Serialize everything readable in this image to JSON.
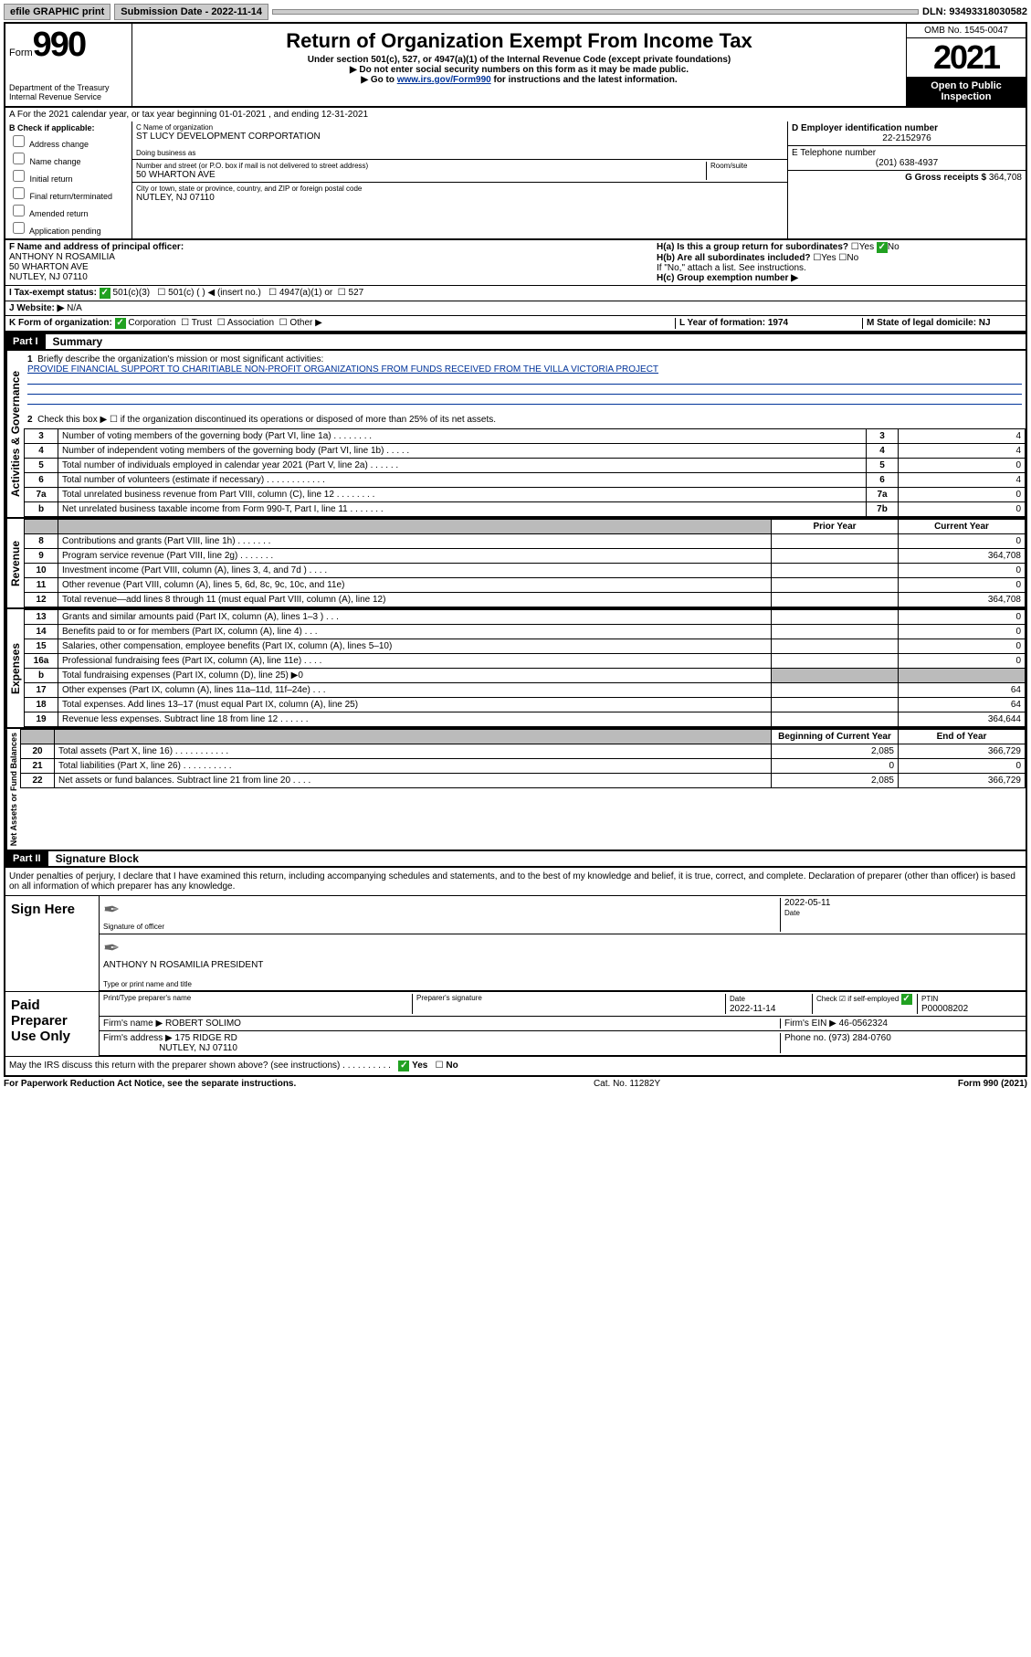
{
  "topbar": {
    "efile": "efile GRAPHIC print",
    "submission_label": "Submission Date - 2022-11-14",
    "dln": "DLN: 93493318030582"
  },
  "header": {
    "form_word": "Form",
    "form_num": "990",
    "dept": "Department of the Treasury\nInternal Revenue Service",
    "title": "Return of Organization Exempt From Income Tax",
    "sub1": "Under section 501(c), 527, or 4947(a)(1) of the Internal Revenue Code (except private foundations)",
    "sub2": "▶ Do not enter social security numbers on this form as it may be made public.",
    "sub3_pre": "▶ Go to ",
    "sub3_link": "www.irs.gov/Form990",
    "sub3_post": " for instructions and the latest information.",
    "omb": "OMB No. 1545-0047",
    "year": "2021",
    "open": "Open to Public Inspection"
  },
  "lineA": "A For the 2021 calendar year, or tax year beginning 01-01-2021   , and ending 12-31-2021",
  "boxB": {
    "title": "B Check if applicable:",
    "opts": [
      "Address change",
      "Name change",
      "Initial return",
      "Final return/terminated",
      "Amended return",
      "Application pending"
    ]
  },
  "boxC": {
    "label_name": "C Name of organization",
    "name": "ST LUCY DEVELOPMENT CORPORTATION",
    "dba_label": "Doing business as",
    "addr_label": "Number and street (or P.O. box if mail is not delivered to street address)",
    "room_label": "Room/suite",
    "addr": "50 WHARTON AVE",
    "city_label": "City or town, state or province, country, and ZIP or foreign postal code",
    "city": "NUTLEY, NJ  07110"
  },
  "boxD": {
    "label": "D Employer identification number",
    "val": "22-2152976"
  },
  "boxE": {
    "label": "E Telephone number",
    "val": "(201) 638-4937"
  },
  "boxG": {
    "label": "G Gross receipts $",
    "val": "364,708"
  },
  "boxF": {
    "label": "F Name and address of principal officer:",
    "name": "ANTHONY N ROSAMILIA",
    "addr1": "50 WHARTON AVE",
    "addr2": "NUTLEY, NJ  07110"
  },
  "boxH": {
    "a": "H(a)  Is this a group return for subordinates?",
    "a_yes": "Yes",
    "a_no": "No",
    "b": "H(b)  Are all subordinates included?",
    "b_yes": "Yes",
    "b_no": "No",
    "b_note": "If \"No,\" attach a list. See instructions.",
    "c": "H(c)  Group exemption number ▶"
  },
  "rowI": {
    "label": "I   Tax-exempt status:",
    "o1": "501(c)(3)",
    "o2": "501(c) (   ) ◀ (insert no.)",
    "o3": "4947(a)(1) or",
    "o4": "527"
  },
  "rowJ": {
    "label": "J   Website: ▶",
    "val": "N/A"
  },
  "rowK": {
    "label": "K Form of organization:",
    "o1": "Corporation",
    "o2": "Trust",
    "o3": "Association",
    "o4": "Other ▶",
    "l": "L Year of formation: 1974",
    "m": "M State of legal domicile: NJ"
  },
  "part1": {
    "hdr": "Part I",
    "title": "Summary",
    "side_gov": "Activities & Governance",
    "side_rev": "Revenue",
    "side_exp": "Expenses",
    "side_net": "Net Assets or Fund Balances",
    "q1": "Briefly describe the organization's mission or most significant activities:",
    "mission": "PROVIDE FINANCIAL SUPPORT TO CHARITIABLE NON-PROFIT ORGANIZATIONS FROM FUNDS RECEIVED FROM THE VILLA VICTORIA PROJECT",
    "q2": "Check this box ▶ ☐  if the organization discontinued its operations or disposed of more than 25% of its net assets.",
    "rows_gov": [
      {
        "n": "3",
        "t": "Number of voting members of the governing body (Part VI, line 1a)  .   .   .   .   .   .   .   .",
        "ln": "3",
        "v": "4"
      },
      {
        "n": "4",
        "t": "Number of independent voting members of the governing body (Part VI, line 1b)  .   .   .   .   .",
        "ln": "4",
        "v": "4"
      },
      {
        "n": "5",
        "t": "Total number of individuals employed in calendar year 2021 (Part V, line 2a)  .   .   .   .   .   .",
        "ln": "5",
        "v": "0"
      },
      {
        "n": "6",
        "t": "Total number of volunteers (estimate if necessary)  .   .   .   .   .   .   .   .   .   .   .   .",
        "ln": "6",
        "v": "4"
      },
      {
        "n": "7a",
        "t": "Total unrelated business revenue from Part VIII, column (C), line 12  .   .   .   .   .   .   .   .",
        "ln": "7a",
        "v": "0"
      },
      {
        "n": "b",
        "t": "Net unrelated business taxable income from Form 990-T, Part I, line 11  .   .   .   .   .   .   .",
        "ln": "7b",
        "v": "0"
      }
    ],
    "col_prior": "Prior Year",
    "col_curr": "Current Year",
    "rows_rev": [
      {
        "n": "8",
        "t": "Contributions and grants (Part VIII, line 1h)  .   .   .   .   .   .   .",
        "p": "",
        "c": "0"
      },
      {
        "n": "9",
        "t": "Program service revenue (Part VIII, line 2g)  .   .   .   .   .   .   .",
        "p": "",
        "c": "364,708"
      },
      {
        "n": "10",
        "t": "Investment income (Part VIII, column (A), lines 3, 4, and 7d )  .   .   .   .",
        "p": "",
        "c": "0"
      },
      {
        "n": "11",
        "t": "Other revenue (Part VIII, column (A), lines 5, 6d, 8c, 9c, 10c, and 11e)",
        "p": "",
        "c": "0"
      },
      {
        "n": "12",
        "t": "Total revenue—add lines 8 through 11 (must equal Part VIII, column (A), line 12)",
        "p": "",
        "c": "364,708"
      }
    ],
    "rows_exp": [
      {
        "n": "13",
        "t": "Grants and similar amounts paid (Part IX, column (A), lines 1–3 )  .   .   .",
        "p": "",
        "c": "0"
      },
      {
        "n": "14",
        "t": "Benefits paid to or for members (Part IX, column (A), line 4)  .   .   .",
        "p": "",
        "c": "0"
      },
      {
        "n": "15",
        "t": "Salaries, other compensation, employee benefits (Part IX, column (A), lines 5–10)",
        "p": "",
        "c": "0"
      },
      {
        "n": "16a",
        "t": "Professional fundraising fees (Part IX, column (A), line 11e)  .   .   .   .",
        "p": "",
        "c": "0"
      },
      {
        "n": "b",
        "t": "Total fundraising expenses (Part IX, column (D), line 25) ▶0",
        "p": "grey",
        "c": "grey"
      },
      {
        "n": "17",
        "t": "Other expenses (Part IX, column (A), lines 11a–11d, 11f–24e)  .   .   .",
        "p": "",
        "c": "64"
      },
      {
        "n": "18",
        "t": "Total expenses. Add lines 13–17 (must equal Part IX, column (A), line 25)",
        "p": "",
        "c": "64"
      },
      {
        "n": "19",
        "t": "Revenue less expenses. Subtract line 18 from line 12  .   .   .   .   .   .",
        "p": "",
        "c": "364,644"
      }
    ],
    "col_beg": "Beginning of Current Year",
    "col_end": "End of Year",
    "rows_net": [
      {
        "n": "20",
        "t": "Total assets (Part X, line 16)  .   .   .   .   .   .   .   .   .   .   .",
        "p": "2,085",
        "c": "366,729"
      },
      {
        "n": "21",
        "t": "Total liabilities (Part X, line 26)  .   .   .   .   .   .   .   .   .   .",
        "p": "0",
        "c": "0"
      },
      {
        "n": "22",
        "t": "Net assets or fund balances. Subtract line 21 from line 20  .   .   .   .",
        "p": "2,085",
        "c": "366,729"
      }
    ]
  },
  "part2": {
    "hdr": "Part II",
    "title": "Signature Block",
    "decl": "Under penalties of perjury, I declare that I have examined this return, including accompanying schedules and statements, and to the best of my knowledge and belief, it is true, correct, and complete. Declaration of preparer (other than officer) is based on all information of which preparer has any knowledge.",
    "sign_here": "Sign Here",
    "sig_officer": "Signature of officer",
    "sig_date": "Date",
    "sig_date_val": "2022-05-11",
    "officer_name": "ANTHONY N ROSAMILIA  PRESIDENT",
    "type_name": "Type or print name and title",
    "paid": "Paid Preparer Use Only",
    "prep_name_label": "Print/Type preparer's name",
    "prep_sig_label": "Preparer's signature",
    "prep_date_label": "Date",
    "prep_date": "2022-11-14",
    "check_if": "Check ☑ if self-employed",
    "ptin_label": "PTIN",
    "ptin": "P00008202",
    "firm_name_label": "Firm's name    ▶",
    "firm_name": "ROBERT SOLIMO",
    "firm_ein_label": "Firm's EIN ▶",
    "firm_ein": "46-0562324",
    "firm_addr_label": "Firm's address ▶",
    "firm_addr1": "175 RIDGE RD",
    "firm_addr2": "NUTLEY, NJ  07110",
    "phone_label": "Phone no.",
    "phone": "(973) 284-0760",
    "may_irs": "May the IRS discuss this return with the preparer shown above? (see instructions)  .   .   .   .   .   .   .   .   .   .",
    "yes": "Yes",
    "no": "No"
  },
  "footer": {
    "left": "For Paperwork Reduction Act Notice, see the separate instructions.",
    "mid": "Cat. No. 11282Y",
    "right": "Form 990 (2021)"
  }
}
